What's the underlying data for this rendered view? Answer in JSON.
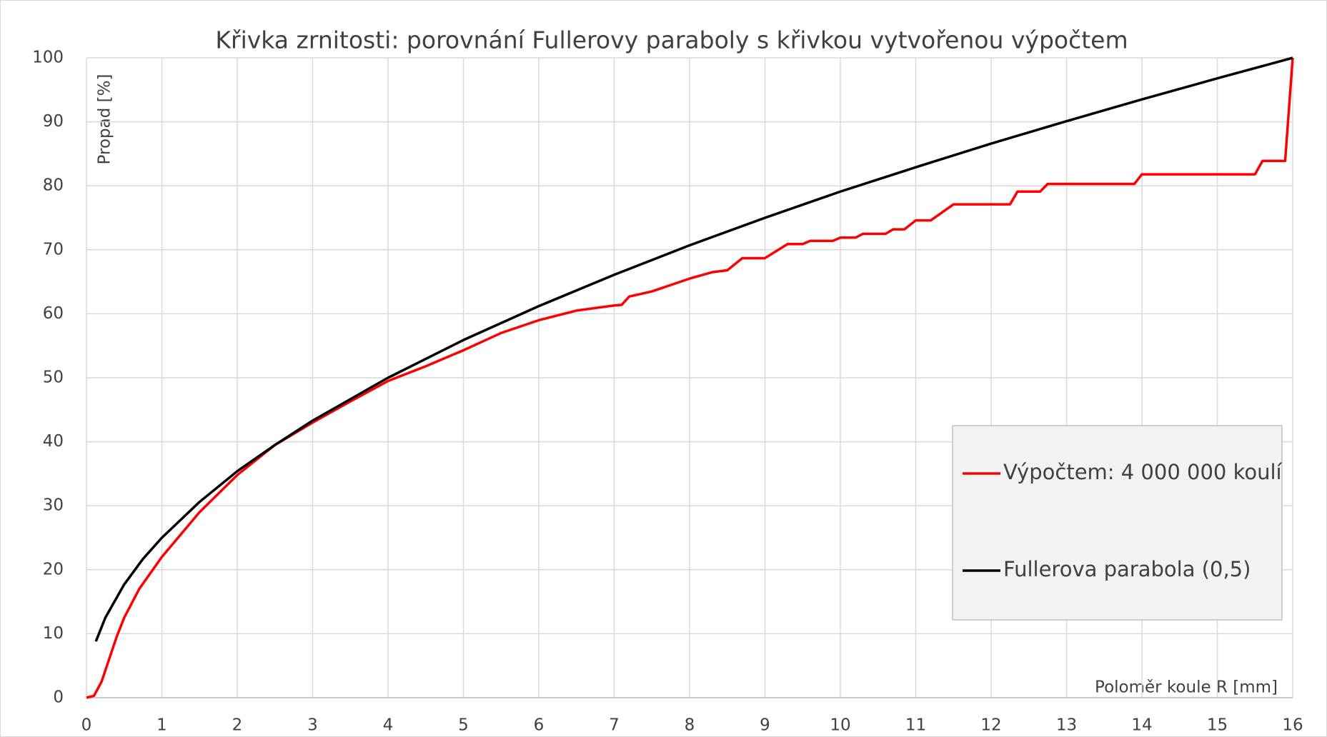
{
  "chart_data": {
    "type": "line",
    "title": "Křivka zrnitosti: porovnání Fullerovy paraboly s křivkou vytvořenou výpočtem",
    "x_label": "Poloměr koule R [mm]",
    "y_label": "Propad [%]",
    "xlim": [
      0,
      16
    ],
    "xticks": [
      0,
      1,
      2,
      3,
      4,
      5,
      6,
      7,
      8,
      9,
      10,
      11,
      12,
      13,
      14,
      15,
      16
    ],
    "ylim": [
      0,
      100
    ],
    "yticks": [
      0,
      10,
      20,
      30,
      40,
      50,
      60,
      70,
      80,
      90,
      100
    ],
    "grid": true,
    "legend": "right",
    "series": [
      {
        "name": "Výpočtem: 4 000 000 koulí",
        "color": "#ff0000",
        "x": [
          0,
          0.1,
          0.2,
          0.3,
          0.4,
          0.5,
          0.7,
          1,
          1.5,
          2,
          2.5,
          3,
          3.5,
          4,
          4.5,
          5,
          5.5,
          6,
          6.5,
          7,
          7.1,
          7.2,
          7.5,
          8,
          8.3,
          8.5,
          8.7,
          9,
          9.3,
          9.5,
          9.6,
          9.9,
          10,
          10.2,
          10.3,
          10.6,
          10.7,
          10.85,
          11,
          11.2,
          11.5,
          12.25,
          12.35,
          12.65,
          12.75,
          13.9,
          14,
          15.5,
          15.6,
          15.9,
          16
        ],
        "values": [
          0,
          0.3,
          2.5,
          6,
          9.5,
          12.5,
          17,
          22,
          29,
          34.8,
          39.5,
          43,
          46.3,
          49.5,
          51.8,
          54.3,
          57,
          59,
          60.5,
          61.3,
          61.4,
          62.7,
          63.5,
          65.5,
          66.5,
          66.8,
          68.7,
          68.7,
          70.9,
          70.9,
          71.4,
          71.4,
          71.9,
          71.9,
          72.5,
          72.5,
          73.2,
          73.2,
          74.6,
          74.6,
          77.1,
          77.1,
          79.1,
          79.1,
          80.3,
          80.3,
          81.8,
          81.8,
          83.9,
          83.9,
          100
        ]
      },
      {
        "name": "Fullerova parabola (0,5)",
        "color": "#000000",
        "x": [
          0.125,
          0.25,
          0.5,
          0.75,
          1,
          1.5,
          2,
          2.5,
          3,
          4,
          5,
          6,
          7,
          8,
          9,
          10,
          11,
          12,
          13,
          14,
          15,
          16
        ],
        "values": [
          8.8,
          12.5,
          17.7,
          21.7,
          25,
          30.6,
          35.4,
          39.5,
          43.3,
          50,
          55.9,
          61.2,
          66.1,
          70.7,
          75,
          79.1,
          82.9,
          86.6,
          90.1,
          93.5,
          96.8,
          100
        ]
      }
    ]
  }
}
